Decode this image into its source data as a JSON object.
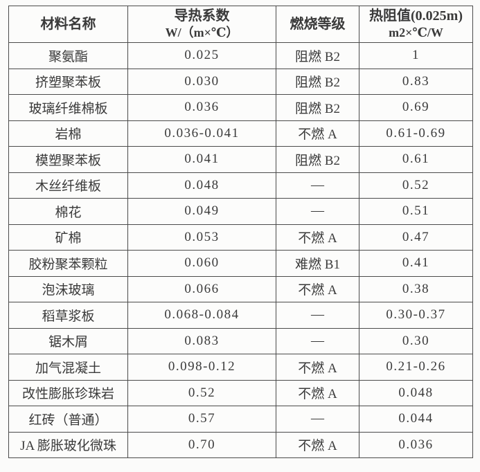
{
  "table": {
    "headers": [
      {
        "line1": "材料名称",
        "line2": ""
      },
      {
        "line1": "导热系数",
        "line2": "W/（m×℃）"
      },
      {
        "line1": "燃烧等级",
        "line2": ""
      },
      {
        "line1": "热阻值(0.025m)",
        "line2": "m2×℃/W"
      }
    ],
    "rows": [
      [
        "聚氨酯",
        "0.025",
        "阻燃 B2",
        "1"
      ],
      [
        "挤塑聚苯板",
        "0.030",
        "阻燃 B2",
        "0.83"
      ],
      [
        "玻璃纤维棉板",
        "0.036",
        "阻燃 B2",
        "0.69"
      ],
      [
        "岩棉",
        "0.036-0.041",
        "不燃 A",
        "0.61-0.69"
      ],
      [
        "模塑聚苯板",
        "0.041",
        "阻燃 B2",
        "0.61"
      ],
      [
        "木丝纤维板",
        "0.048",
        "—",
        "0.52"
      ],
      [
        "棉花",
        "0.049",
        "—",
        "0.51"
      ],
      [
        "矿棉",
        "0.053",
        "不燃 A",
        "0.47"
      ],
      [
        "胶粉聚苯颗粒",
        "0.060",
        "难燃 B1",
        "0.41"
      ],
      [
        "泡沫玻璃",
        "0.066",
        "不燃 A",
        "0.38"
      ],
      [
        "稻草浆板",
        "0.068-0.084",
        "—",
        "0.30-0.37"
      ],
      [
        "锯木屑",
        "0.083",
        "—",
        "0.30"
      ],
      [
        "加气混凝土",
        "0.098-0.12",
        "不燃 A",
        "0.21-0.26"
      ],
      [
        "改性膨胀珍珠岩",
        "0.52",
        "不燃 A",
        "0.048"
      ],
      [
        "红砖（普通）",
        "0.57",
        "—",
        "0.044"
      ],
      [
        "JA 膨胀玻化微珠",
        "0.70",
        "不燃 A",
        "0.036"
      ]
    ],
    "cell_names": [
      "material-name-cell",
      "conductivity-cell",
      "combustion-grade-cell",
      "thermal-resistance-cell"
    ]
  },
  "colors": {
    "background": "#fbfbfa",
    "border": "#4a4a4a",
    "text": "#3a3a3a"
  }
}
